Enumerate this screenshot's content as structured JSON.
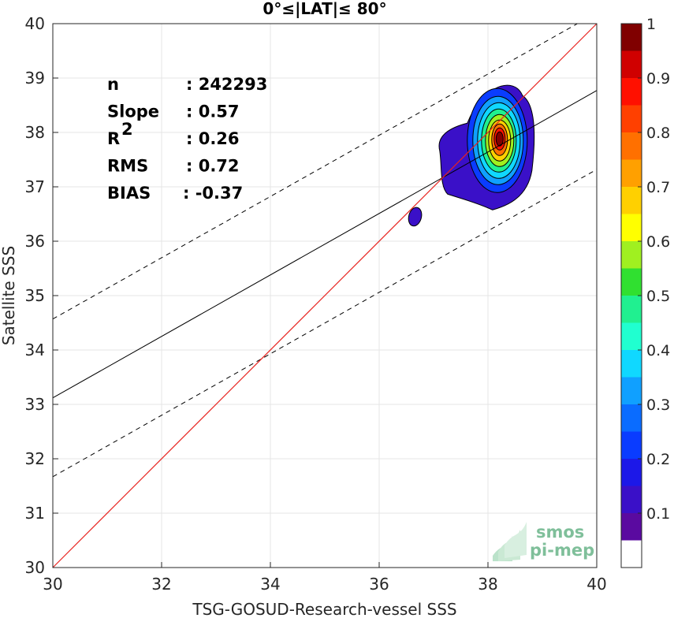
{
  "chart_data": {
    "type": "contour-density-scatter",
    "title": "0°≤|LAT|≤ 80°",
    "xlabel": "TSG-GOSUD-Research-vessel SSS",
    "ylabel": "Satellite SSS",
    "xlim": [
      30,
      40
    ],
    "ylim": [
      30,
      40
    ],
    "xticks": [
      "30",
      "32",
      "34",
      "36",
      "38",
      "40"
    ],
    "yticks": [
      "30",
      "31",
      "32",
      "33",
      "34",
      "35",
      "36",
      "37",
      "38",
      "39",
      "40"
    ],
    "grid": true,
    "stats": [
      {
        "label": "n",
        "value": ": 242293"
      },
      {
        "label": "Slope",
        "value": ": 0.57"
      },
      {
        "label": "R",
        "sup": "2",
        "value": ": 0.26"
      },
      {
        "label": "RMS",
        "value": ": 0.72"
      },
      {
        "label": "BIAS",
        "value": ": -0.37"
      }
    ],
    "lines": {
      "identity": {
        "color": "#e8231f",
        "from": [
          30,
          30
        ],
        "to": [
          40,
          40
        ]
      },
      "fit": {
        "color": "#000000",
        "slope": 0.57,
        "intercept_at_30": 33.12,
        "value_at_40": 38.77
      },
      "fit_upper_dashed": {
        "value_at_30": 34.57,
        "value_at_40": 40.2
      },
      "fit_lower_dashed": {
        "value_at_30": 31.67,
        "value_at_40": 37.32
      }
    },
    "density": {
      "peak": {
        "x": 38.2,
        "y": 37.88
      },
      "secondary_blob": {
        "x": 36.66,
        "y": 36.45
      }
    },
    "colorbar": {
      "ticks": [
        "0.1",
        "0.2",
        "0.3",
        "0.4",
        "0.5",
        "0.6",
        "0.7",
        "0.8",
        "0.9",
        "1"
      ],
      "colors": [
        "#ffffff",
        "#5a0aa0",
        "#3a10c8",
        "#1c18e8",
        "#0a3cff",
        "#0a6cff",
        "#10a0ff",
        "#10d8ff",
        "#20ffd0",
        "#20f090",
        "#30e030",
        "#a0f020",
        "#ffff00",
        "#ffd000",
        "#ffa000",
        "#ff7000",
        "#ff4000",
        "#ff1000",
        "#d00000",
        "#800000"
      ]
    }
  },
  "logo": {
    "line1": "smos",
    "line2": "pi-mep"
  }
}
